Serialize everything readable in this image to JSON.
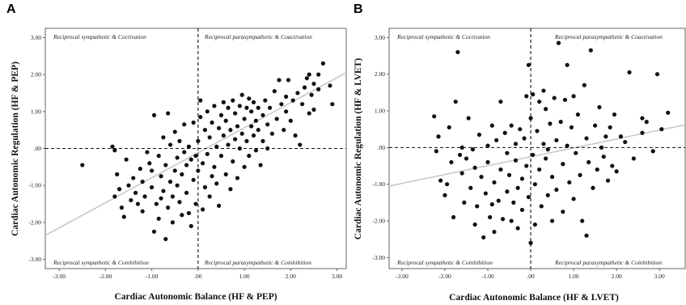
{
  "chart_data": [
    {
      "id": "A",
      "type": "scatter",
      "panel_label": "A",
      "xlabel": "Cardiac Autonomic Balance (HF & PEP)",
      "ylabel": "Cardiac Autonomic Regulation (HF & PEP)",
      "xlim": [
        -3.3,
        3.2
      ],
      "ylim": [
        -3.25,
        3.25
      ],
      "xticks": [
        -3,
        -2,
        -1,
        0,
        1,
        2,
        3
      ],
      "xtick_labels": [
        "-3.00",
        "-2.00",
        "-1.00",
        ".00",
        "1.00",
        "2.00",
        "3.00"
      ],
      "yticks": [
        -3,
        -2,
        -1,
        0,
        1,
        2,
        3
      ],
      "ytick_labels": [
        "-3.00",
        "-2.00",
        "-1.00",
        ".00",
        "1.00",
        "2.00",
        "3.00"
      ],
      "quadrants": {
        "top_left": "Reciprocal sympathetic & Coctivation",
        "top_right": "Reciprocal parasympathetic & Coactivation",
        "bottom_left": "Reciprocal sympathetic & Coinhibition",
        "bottom_right": "Reciprocal parasympathetic & Coinhibition"
      },
      "fit_line": {
        "x": [
          -3.3,
          3.2
        ],
        "y": [
          -2.35,
          2.05
        ]
      },
      "points": [
        [
          -2.5,
          -0.45
        ],
        [
          -1.85,
          0.05
        ],
        [
          -1.8,
          -0.05
        ],
        [
          -1.75,
          -0.7
        ],
        [
          -1.7,
          -1.1
        ],
        [
          -1.8,
          -1.3
        ],
        [
          -1.65,
          -1.6
        ],
        [
          -1.6,
          -1.85
        ],
        [
          -1.55,
          -0.3
        ],
        [
          -1.5,
          -1.0
        ],
        [
          -1.45,
          -1.4
        ],
        [
          -1.4,
          -0.8
        ],
        [
          -1.35,
          -1.2
        ],
        [
          -1.3,
          -1.5
        ],
        [
          -1.25,
          -0.55
        ],
        [
          -1.2,
          -0.9
        ],
        [
          -1.2,
          -1.7
        ],
        [
          -1.15,
          -1.3
        ],
        [
          -1.1,
          -0.1
        ],
        [
          -1.05,
          -0.4
        ],
        [
          -1.0,
          -0.6
        ],
        [
          -1.0,
          -1.05
        ],
        [
          -0.95,
          -2.25
        ],
        [
          -0.95,
          0.9
        ],
        [
          -0.9,
          -1.5
        ],
        [
          -0.85,
          -0.2
        ],
        [
          -0.85,
          -1.9
        ],
        [
          -0.8,
          -0.75
        ],
        [
          -0.8,
          -1.35
        ],
        [
          -0.75,
          0.3
        ],
        [
          -0.75,
          -1.15
        ],
        [
          -0.7,
          -2.45
        ],
        [
          -0.7,
          -0.45
        ],
        [
          -0.65,
          0.95
        ],
        [
          -0.65,
          -1.6
        ],
        [
          -0.6,
          -0.9
        ],
        [
          -0.6,
          0.1
        ],
        [
          -0.55,
          -1.3
        ],
        [
          -0.55,
          -2.0
        ],
        [
          -0.5,
          -0.6
        ],
        [
          -0.5,
          0.45
        ],
        [
          -0.45,
          -1.0
        ],
        [
          -0.45,
          -0.25
        ],
        [
          -0.4,
          -1.45
        ],
        [
          -0.4,
          0.2
        ],
        [
          -0.35,
          -0.7
        ],
        [
          -0.35,
          -1.8
        ],
        [
          -0.3,
          -0.1
        ],
        [
          -0.3,
          0.65
        ],
        [
          -0.25,
          -0.45
        ],
        [
          -0.25,
          -1.2
        ],
        [
          -0.2,
          -1.75
        ],
        [
          -0.2,
          0.05
        ],
        [
          -0.15,
          -0.3
        ],
        [
          -0.15,
          -2.1
        ],
        [
          -0.1,
          -0.85
        ],
        [
          -0.1,
          0.7
        ],
        [
          -0.05,
          -0.2
        ],
        [
          -0.05,
          -1.5
        ],
        [
          0.0,
          0.2
        ],
        [
          0.0,
          -0.6
        ],
        [
          0.05,
          0.85
        ],
        [
          0.05,
          1.3
        ],
        [
          0.1,
          -1.65
        ],
        [
          0.1,
          -0.4
        ],
        [
          0.15,
          0.5
        ],
        [
          0.15,
          -1.05
        ],
        [
          0.2,
          1.0
        ],
        [
          0.2,
          -0.15
        ],
        [
          0.25,
          0.3
        ],
        [
          0.25,
          -1.3
        ],
        [
          0.3,
          -0.75
        ],
        [
          0.3,
          0.7
        ],
        [
          0.35,
          1.15
        ],
        [
          0.35,
          -0.5
        ],
        [
          0.4,
          0.05
        ],
        [
          0.4,
          -0.95
        ],
        [
          0.45,
          0.55
        ],
        [
          0.45,
          -1.55
        ],
        [
          0.5,
          0.9
        ],
        [
          0.5,
          -0.2
        ],
        [
          0.55,
          1.25
        ],
        [
          0.55,
          0.35
        ],
        [
          0.6,
          -0.7
        ],
        [
          0.6,
          0.75
        ],
        [
          0.65,
          0.1
        ],
        [
          0.65,
          1.1
        ],
        [
          0.7,
          -1.1
        ],
        [
          0.7,
          0.5
        ],
        [
          0.75,
          1.3
        ],
        [
          0.75,
          -0.35
        ],
        [
          0.8,
          0.25
        ],
        [
          0.8,
          0.95
        ],
        [
          0.85,
          -0.8
        ],
        [
          0.85,
          0.6
        ],
        [
          0.9,
          1.15
        ],
        [
          0.9,
          0.0
        ],
        [
          0.95,
          0.4
        ],
        [
          0.95,
          1.45
        ],
        [
          1.0,
          -0.5
        ],
        [
          1.0,
          0.8
        ],
        [
          1.05,
          1.1
        ],
        [
          1.05,
          0.2
        ],
        [
          1.1,
          1.35
        ],
        [
          1.1,
          -0.2
        ],
        [
          1.15,
          0.6
        ],
        [
          1.15,
          1.0
        ],
        [
          1.2,
          0.35
        ],
        [
          1.2,
          1.25
        ],
        [
          1.25,
          0.75
        ],
        [
          1.25,
          -0.05
        ],
        [
          1.3,
          1.1
        ],
        [
          1.3,
          0.5
        ],
        [
          1.35,
          -0.45
        ],
        [
          1.4,
          0.9
        ],
        [
          1.4,
          0.2
        ],
        [
          1.45,
          1.3
        ],
        [
          1.5,
          0.65
        ],
        [
          1.5,
          0.0
        ],
        [
          1.55,
          1.1
        ],
        [
          1.6,
          0.4
        ],
        [
          1.65,
          1.55
        ],
        [
          1.7,
          0.8
        ],
        [
          1.75,
          1.85
        ],
        [
          1.8,
          1.2
        ],
        [
          1.85,
          0.5
        ],
        [
          1.9,
          1.0
        ],
        [
          1.95,
          1.85
        ],
        [
          2.0,
          0.75
        ],
        [
          2.05,
          1.3
        ],
        [
          2.1,
          0.35
        ],
        [
          2.15,
          1.5
        ],
        [
          2.2,
          0.1
        ],
        [
          2.25,
          1.2
        ],
        [
          2.3,
          1.65
        ],
        [
          2.35,
          1.9
        ],
        [
          2.4,
          0.95
        ],
        [
          2.45,
          1.45
        ],
        [
          2.5,
          1.75
        ],
        [
          2.6,
          1.6
        ],
        [
          2.7,
          2.3
        ],
        [
          2.85,
          1.7
        ],
        [
          2.6,
          2.0
        ],
        [
          2.5,
          1.05
        ],
        [
          1.9,
          1.4
        ],
        [
          2.4,
          2.0
        ],
        [
          2.9,
          1.2
        ]
      ]
    },
    {
      "id": "B",
      "type": "scatter",
      "panel_label": "B",
      "xlabel": "Cardiac Autonomic Balance (HF & LVET)",
      "ylabel": "Cardiac Autonomic Regulation (HF & LVET)",
      "xlim": [
        -3.3,
        3.6
      ],
      "ylim": [
        -3.3,
        3.25
      ],
      "xticks": [
        -3,
        -2,
        -1,
        0,
        1,
        2,
        3
      ],
      "xtick_labels": [
        "-3.00",
        "-2.00",
        "-1.00",
        ".00",
        "1.00",
        "2.00",
        "3.00"
      ],
      "yticks": [
        -3,
        -2,
        -1,
        0,
        1,
        2,
        3
      ],
      "ytick_labels": [
        "-3.00",
        "-2.00",
        "-1.00",
        ".00",
        "1.00",
        "2.00",
        "3.00"
      ],
      "quadrants": {
        "top_left": "Reciprocal sympathetic & Coctivation",
        "top_right": "Reciprocal parasympathetic & Coactivation",
        "bottom_left": "Reciprocal sympathetic & Coinhibition",
        "bottom_right": "Reciprocal parasympathetic & Coinhibition"
      },
      "fit_line": {
        "x": [
          -3.3,
          3.6
        ],
        "y": [
          -1.05,
          0.62
        ]
      },
      "points": [
        [
          -2.25,
          0.85
        ],
        [
          -2.15,
          0.3
        ],
        [
          -2.1,
          -0.9
        ],
        [
          -2.0,
          -1.3
        ],
        [
          -1.95,
          -1.0
        ],
        [
          -1.9,
          0.55
        ],
        [
          -1.85,
          -0.4
        ],
        [
          -1.8,
          -1.9
        ],
        [
          -1.75,
          1.25
        ],
        [
          -1.7,
          2.6
        ],
        [
          -1.65,
          -0.2
        ],
        [
          -1.6,
          -0.7
        ],
        [
          -1.6,
          0.0
        ],
        [
          -1.55,
          -1.5
        ],
        [
          -1.5,
          -0.3
        ],
        [
          -1.45,
          0.8
        ],
        [
          -1.4,
          -1.1
        ],
        [
          -1.35,
          -0.05
        ],
        [
          -1.3,
          -0.55
        ],
        [
          -1.3,
          -2.1
        ],
        [
          -1.25,
          -1.6
        ],
        [
          -1.2,
          0.35
        ],
        [
          -1.15,
          -0.8
        ],
        [
          -1.1,
          -2.45
        ],
        [
          -1.05,
          -1.25
        ],
        [
          -1.0,
          0.05
        ],
        [
          -1.0,
          -0.4
        ],
        [
          -0.95,
          -1.9
        ],
        [
          -0.9,
          0.6
        ],
        [
          -0.85,
          -0.95
        ],
        [
          -0.85,
          -2.3
        ],
        [
          -0.8,
          0.2
        ],
        [
          -0.75,
          -1.45
        ],
        [
          -0.7,
          -0.6
        ],
        [
          -0.7,
          1.25
        ],
        [
          -0.65,
          -1.95
        ],
        [
          -0.6,
          0.4
        ],
        [
          -0.55,
          -0.15
        ],
        [
          -0.55,
          -1.2
        ],
        [
          -0.5,
          -0.75
        ],
        [
          -0.45,
          -2.0
        ],
        [
          -0.45,
          0.6
        ],
        [
          -0.4,
          -1.5
        ],
        [
          -0.35,
          0.1
        ],
        [
          -0.35,
          -0.35
        ],
        [
          -0.3,
          -1.1
        ],
        [
          -0.3,
          -2.2
        ],
        [
          -0.25,
          0.5
        ],
        [
          -0.2,
          -0.85
        ],
        [
          -0.2,
          -1.7
        ],
        [
          -0.15,
          0.25
        ],
        [
          -0.1,
          -0.5
        ],
        [
          -0.1,
          1.4
        ],
        [
          -0.05,
          -1.35
        ],
        [
          -0.05,
          2.25
        ],
        [
          0.0,
          -2.6
        ],
        [
          0.0,
          0.8
        ],
        [
          0.05,
          -0.2
        ],
        [
          0.05,
          1.45
        ],
        [
          0.1,
          -1.0
        ],
        [
          0.1,
          -2.1
        ],
        [
          0.15,
          0.45
        ],
        [
          0.2,
          -0.6
        ],
        [
          0.2,
          1.25
        ],
        [
          0.25,
          -1.6
        ],
        [
          0.3,
          0.1
        ],
        [
          0.35,
          -0.3
        ],
        [
          0.35,
          1.05
        ],
        [
          0.4,
          -1.3
        ],
        [
          0.45,
          0.65
        ],
        [
          0.5,
          -2.0
        ],
        [
          0.5,
          -0.8
        ],
        [
          0.55,
          1.35
        ],
        [
          0.6,
          0.2
        ],
        [
          0.6,
          -1.15
        ],
        [
          0.65,
          2.85
        ],
        [
          0.7,
          0.7
        ],
        [
          0.75,
          -0.45
        ],
        [
          0.75,
          -1.75
        ],
        [
          0.8,
          1.3
        ],
        [
          0.85,
          0.05
        ],
        [
          0.85,
          2.25
        ],
        [
          0.9,
          -0.95
        ],
        [
          0.95,
          0.55
        ],
        [
          1.0,
          -1.4
        ],
        [
          1.0,
          1.4
        ],
        [
          1.05,
          -0.15
        ],
        [
          1.1,
          0.9
        ],
        [
          1.15,
          -0.75
        ],
        [
          1.2,
          -2.0
        ],
        [
          1.25,
          1.7
        ],
        [
          1.3,
          0.25
        ],
        [
          1.35,
          -0.4
        ],
        [
          1.4,
          2.65
        ],
        [
          1.45,
          -1.1
        ],
        [
          1.5,
          0.6
        ],
        [
          1.55,
          -0.6
        ],
        [
          1.6,
          1.1
        ],
        [
          1.65,
          0.0
        ],
        [
          1.7,
          -0.25
        ],
        [
          1.75,
          0.3
        ],
        [
          1.8,
          -0.9
        ],
        [
          1.85,
          0.55
        ],
        [
          1.9,
          -0.5
        ],
        [
          1.95,
          0.9
        ],
        [
          2.0,
          -0.65
        ],
        [
          2.1,
          0.3
        ],
        [
          2.2,
          0.15
        ],
        [
          2.3,
          2.05
        ],
        [
          2.4,
          -0.3
        ],
        [
          2.6,
          0.4
        ],
        [
          2.7,
          0.7
        ],
        [
          2.85,
          -0.1
        ],
        [
          2.95,
          2.0
        ],
        [
          3.05,
          0.5
        ],
        [
          3.2,
          0.95
        ],
        [
          1.3,
          -2.4
        ],
        [
          0.3,
          1.55
        ],
        [
          -0.9,
          -1.55
        ],
        [
          -2.2,
          -0.1
        ],
        [
          0.4,
          -0.05
        ],
        [
          2.6,
          0.8
        ]
      ]
    }
  ]
}
